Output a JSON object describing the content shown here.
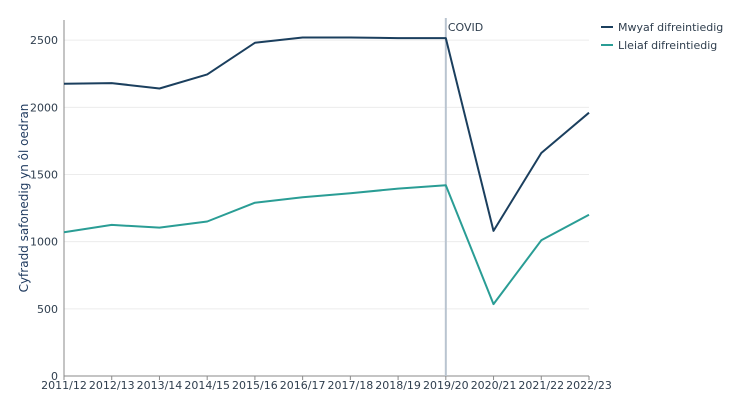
{
  "chart_data": {
    "type": "line",
    "categories": [
      "2011/12",
      "2012/13",
      "2013/14",
      "2014/15",
      "2015/16",
      "2016/17",
      "2017/18",
      "2018/19",
      "2019/20",
      "2020/21",
      "2021/22",
      "2022/23"
    ],
    "series": [
      {
        "name": "Mwyaf difreintiedig",
        "color": "#1b3f5e",
        "values": [
          2175,
          2180,
          2140,
          2245,
          2480,
          2520,
          2520,
          2515,
          2515,
          1080,
          1660,
          1960
        ]
      },
      {
        "name": "Lleiaf difreintiedig",
        "color": "#2a9d95",
        "values": [
          1070,
          1125,
          1105,
          1150,
          1290,
          1330,
          1360,
          1395,
          1420,
          535,
          1010,
          1200
        ]
      }
    ],
    "ylabel": "Cyfradd safonedig yn ôl oedran",
    "ylim": [
      0,
      2650
    ],
    "yticks": [
      0,
      500,
      1000,
      1500,
      2000,
      2500
    ],
    "annotation": {
      "label": "COVID",
      "category": "2019/20"
    },
    "legend_position": "top-right",
    "grid": true
  }
}
